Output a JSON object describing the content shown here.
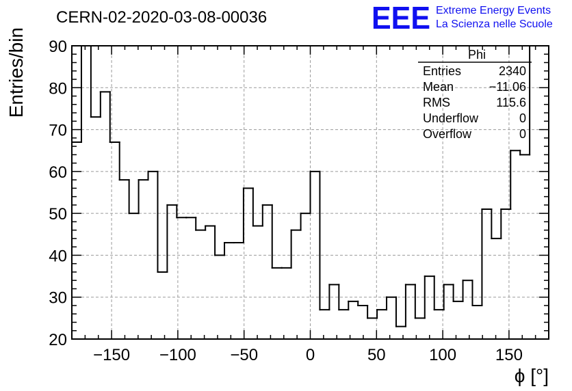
{
  "header": {
    "title": "CERN-02-2020-03-08-00036",
    "logo_text": "EEE",
    "logo_line1": "Extreme Energy Events",
    "logo_line2": "La Scienza nelle Scuole",
    "logo_color": "#1010f0"
  },
  "stats": {
    "name": "Phi",
    "rows": [
      {
        "label": "Entries",
        "value": "2340"
      },
      {
        "label": "Mean",
        "value": "−11.06"
      },
      {
        "label": "RMS",
        "value": "115.6"
      },
      {
        "label": "Underflow",
        "value": "0"
      },
      {
        "label": "Overflow",
        "value": "0"
      }
    ]
  },
  "chart_data": {
    "type": "histogram",
    "xlabel": "ϕ [°]",
    "ylabel": "Entries/bin",
    "xlim": [
      -180,
      180
    ],
    "ylim": [
      20,
      90
    ],
    "bin_width": 7.2,
    "grid": true,
    "stats_box": "top-right",
    "x_ticks": [
      {
        "value": -150,
        "label": "−150"
      },
      {
        "value": -100,
        "label": "−100"
      },
      {
        "value": -50,
        "label": "−50"
      },
      {
        "value": 0,
        "label": "0"
      },
      {
        "value": 50,
        "label": "50"
      },
      {
        "value": 100,
        "label": "100"
      },
      {
        "value": 150,
        "label": "150"
      }
    ],
    "y_ticks": [
      {
        "value": 20,
        "label": "20"
      },
      {
        "value": 30,
        "label": "30"
      },
      {
        "value": 40,
        "label": "40"
      },
      {
        "value": 50,
        "label": "50"
      },
      {
        "value": 60,
        "label": "60"
      },
      {
        "value": 70,
        "label": "70"
      },
      {
        "value": 80,
        "label": "80"
      },
      {
        "value": 90,
        "label": "90"
      }
    ],
    "values": [
      67,
      90,
      73,
      79,
      67,
      58,
      50,
      58,
      60,
      36,
      52,
      49,
      49,
      46,
      47,
      40,
      43,
      43,
      56,
      47,
      52,
      37,
      37,
      46,
      50,
      60,
      27,
      33,
      27,
      29,
      28,
      25,
      27,
      30,
      23,
      33,
      25,
      35,
      27,
      33,
      29,
      34,
      28,
      51,
      44,
      51,
      65,
      64,
      90,
      90
    ]
  }
}
